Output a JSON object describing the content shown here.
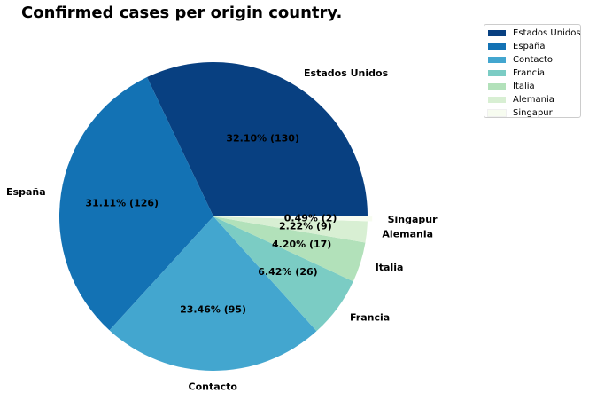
{
  "chart_data": {
    "type": "pie",
    "title": "Confirmed cases per origin country.",
    "slices": [
      {
        "label": "Estados Unidos",
        "value": 130,
        "percent_label": "32.10%  (130)",
        "color": "#084081"
      },
      {
        "label": "España",
        "value": 126,
        "percent_label": "31.11%  (126)",
        "color": "#1372b4"
      },
      {
        "label": "Contacto",
        "value": 95,
        "percent_label": "23.46%  (95)",
        "color": "#43a6cf"
      },
      {
        "label": "Francia",
        "value": 26,
        "percent_label": "6.42%  (26)",
        "color": "#7bccc4"
      },
      {
        "label": "Italia",
        "value": 17,
        "percent_label": "4.20%  (17)",
        "color": "#b2e1ba"
      },
      {
        "label": "Alemania",
        "value": 9,
        "percent_label": "2.22%  (9)",
        "color": "#d8efd3"
      },
      {
        "label": "Singapur",
        "value": 2,
        "percent_label": "0.49%  (2)",
        "color": "#f7fcf0"
      }
    ],
    "legend": {
      "placement": "upper-right-outside",
      "entries": [
        "Estados Unidos",
        "España",
        "Contacto",
        "Francia",
        "Italia",
        "Alemania",
        "Singapur"
      ]
    },
    "explode": "Singapur"
  }
}
